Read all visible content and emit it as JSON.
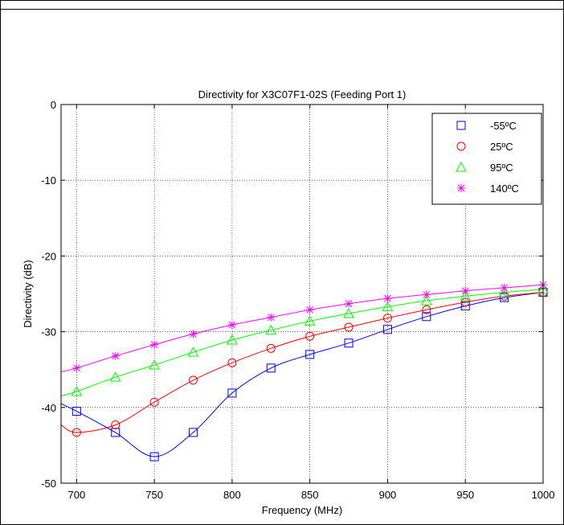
{
  "chart_data": {
    "type": "line",
    "title": "Directivity for X3C07F1-02S (Feeding Port 1)",
    "xlabel": "Frequency (MHz)",
    "ylabel": "Directivity (dB)",
    "xlim": [
      690,
      1000
    ],
    "ylim": [
      -50,
      0
    ],
    "xticks": [
      700,
      750,
      800,
      850,
      900,
      950,
      1000
    ],
    "yticks": [
      0,
      -10,
      -20,
      -30,
      -40,
      -50
    ],
    "grid": true,
    "legend_position": "top-right",
    "x": [
      700,
      725,
      750,
      775,
      800,
      825,
      850,
      875,
      900,
      925,
      950,
      975,
      1000
    ],
    "series": [
      {
        "name": "-55ºC",
        "color": "#0000ff",
        "marker": "square",
        "values": [
          -40.5,
          -43.3,
          -46.5,
          -43.3,
          -38.1,
          -34.8,
          -33.0,
          -31.5,
          -29.7,
          -28.0,
          -26.6,
          -25.5,
          -24.8
        ],
        "curve_start": [
          690,
          -39.5
        ]
      },
      {
        "name": "25ºC",
        "color": "#ff0000",
        "marker": "circle",
        "values": [
          -43.3,
          -42.3,
          -39.3,
          -36.4,
          -34.1,
          -32.2,
          -30.6,
          -29.4,
          -28.2,
          -27.1,
          -26.1,
          -25.3,
          -24.8
        ],
        "curve_start": [
          690,
          -42.3
        ]
      },
      {
        "name": "95ºC",
        "color": "#00ff00",
        "marker": "triangle",
        "values": [
          -37.9,
          -36.0,
          -34.4,
          -32.7,
          -31.1,
          -29.8,
          -28.6,
          -27.6,
          -26.7,
          -25.9,
          -25.3,
          -24.8,
          -24.4
        ],
        "curve_start": [
          690,
          -38.5
        ]
      },
      {
        "name": "140ºC",
        "color": "#ff00ff",
        "marker": "star",
        "values": [
          -34.8,
          -33.2,
          -31.7,
          -30.3,
          -29.1,
          -28.1,
          -27.1,
          -26.3,
          -25.6,
          -25.1,
          -24.6,
          -24.2,
          -23.8
        ],
        "curve_start": [
          690,
          -35.3
        ]
      }
    ]
  }
}
